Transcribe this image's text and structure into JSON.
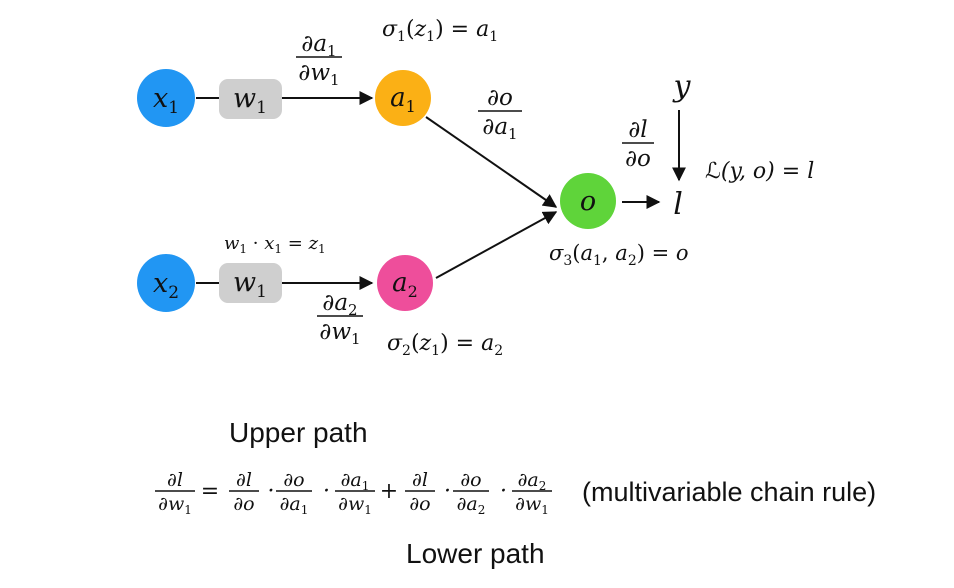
{
  "colors": {
    "input_node": "#2196F3",
    "weight_box": "#cfcfcf",
    "a1_node": "#FBB015",
    "a2_node": "#EE4E9B",
    "output_node": "#5FD43A",
    "edge": "#111111",
    "text": "#111111"
  },
  "nodes": {
    "x1": {
      "var": "x",
      "sub": "1"
    },
    "w1_top": {
      "var": "w",
      "sub": "1"
    },
    "a1": {
      "var": "a",
      "sub": "1"
    },
    "x2": {
      "var": "x",
      "sub": "2"
    },
    "w1_bottom": {
      "var": "w",
      "sub": "1"
    },
    "a2": {
      "var": "a",
      "sub": "2"
    },
    "o": {
      "var": "o"
    },
    "y": {
      "var": "y"
    },
    "l": {
      "var": "l"
    }
  },
  "labels": {
    "sigma1": {
      "f": "σ",
      "fsub": "1",
      "arg": "z",
      "argsub": "1",
      "rhs": "a",
      "rhssub": "1"
    },
    "sigma2": {
      "f": "σ",
      "fsub": "2",
      "arg": "z",
      "argsub": "1",
      "rhs": "a",
      "rhssub": "2"
    },
    "sigma3": {
      "f": "σ",
      "fsub": "3",
      "rhs": "o"
    },
    "product": {
      "w": "w",
      "x": "x",
      "z": "z",
      "sub": "1"
    },
    "loss": {
      "script": "ℒ",
      "args": "(y, o)",
      "rhs": "l"
    }
  },
  "derivatives": {
    "da1_dw1": {
      "num": "∂a",
      "numsub": "1",
      "den": "∂w",
      "densub": "1"
    },
    "do_da1": {
      "num": "∂o",
      "numsub": "",
      "den": "∂a",
      "densub": "1"
    },
    "da2_dw1": {
      "num": "∂a",
      "numsub": "2",
      "den": "∂w",
      "densub": "1"
    },
    "dl_do": {
      "num": "∂l",
      "numsub": "",
      "den": "∂o",
      "densub": ""
    }
  },
  "equation": {
    "upper_path_label": "Upper path",
    "lower_path_label": "Lower path",
    "note": "(multivariable chain rule)",
    "lhs": {
      "num": "∂l",
      "numsub": "",
      "den": "∂w",
      "densub": "1"
    },
    "upper_terms": [
      {
        "num": "∂l",
        "numsub": "",
        "den": "∂o",
        "densub": ""
      },
      {
        "num": "∂o",
        "numsub": "",
        "den": "∂a",
        "densub": "1"
      },
      {
        "num": "∂a",
        "numsub": "1",
        "den": "∂w",
        "densub": "1"
      }
    ],
    "lower_terms": [
      {
        "num": "∂l",
        "numsub": "",
        "den": "∂o",
        "densub": ""
      },
      {
        "num": "∂o",
        "numsub": "",
        "den": "∂a",
        "densub": "2"
      },
      {
        "num": "∂a",
        "numsub": "2",
        "den": "∂w",
        "densub": "1"
      }
    ]
  }
}
